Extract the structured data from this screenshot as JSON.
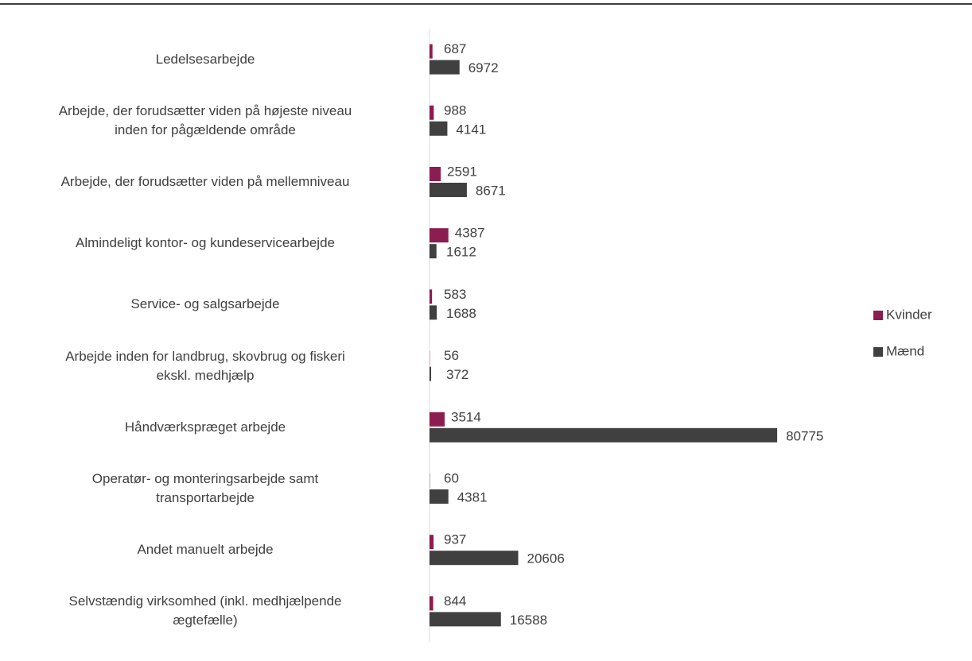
{
  "chart_data": {
    "type": "bar",
    "orientation": "horizontal",
    "categories": [
      "Ledelsesarbejde",
      "Arbejde, der forudsætter viden på højeste niveau\ninden for pågældende område",
      "Arbejde, der forudsætter viden på mellemniveau",
      "Almindeligt kontor- og kundeservicearbejde",
      "Service- og salgsarbejde",
      "Arbejde inden for landbrug, skovbrug og fiskeri\nekskl. medhjælp",
      "Håndværkspræget arbejde",
      "Operatør- og monteringsarbejde samt\ntransportarbejde",
      "Andet manuelt arbejde",
      "Selvstændig virksomhed (inkl. medhjælpende\nægtefælle)"
    ],
    "series": [
      {
        "name": "Kvinder",
        "color": "#8c1d50",
        "values": [
          687,
          988,
          2591,
          4387,
          583,
          56,
          3514,
          60,
          937,
          844
        ]
      },
      {
        "name": "Mænd",
        "color": "#404040",
        "values": [
          6972,
          4141,
          8671,
          1612,
          1688,
          372,
          80775,
          4381,
          20606,
          16588
        ]
      }
    ],
    "xlim": [
      0,
      90000
    ],
    "legend": "right"
  }
}
